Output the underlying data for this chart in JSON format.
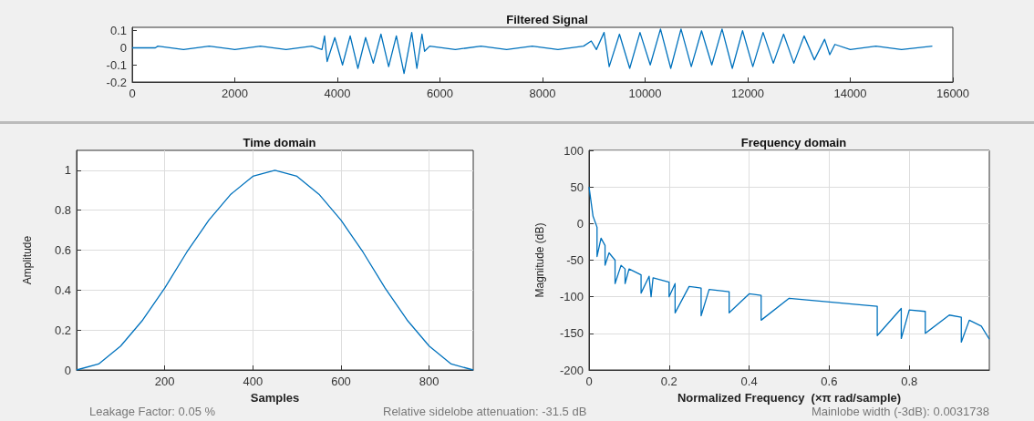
{
  "chart_data": [
    {
      "type": "line",
      "title": "Filtered Signal",
      "color": "#0072bd",
      "grid": false,
      "xlim": [
        0,
        16000
      ],
      "xticks": [
        0,
        2000,
        4000,
        6000,
        8000,
        10000,
        12000,
        14000,
        16000
      ],
      "ylim": [
        -0.2,
        0.12
      ],
      "yticks": [
        -0.2,
        -0.1,
        0,
        0.1
      ],
      "x": [
        0,
        450,
        500,
        1000,
        1500,
        2000,
        2500,
        3000,
        3500,
        3700,
        3750,
        3800,
        3950,
        4100,
        4250,
        4400,
        4550,
        4700,
        4850,
        5000,
        5150,
        5300,
        5450,
        5550,
        5650,
        5700,
        5800,
        6300,
        6800,
        7300,
        7800,
        8300,
        8800,
        8950,
        9050,
        9200,
        9300,
        9500,
        9700,
        9900,
        10100,
        10300,
        10500,
        10700,
        10900,
        11100,
        11300,
        11500,
        11700,
        11900,
        12100,
        12300,
        12500,
        12700,
        12900,
        13100,
        13300,
        13500,
        13600,
        13700,
        14000,
        14500,
        15000,
        15600
      ],
      "values": [
        0,
        0,
        0.01,
        -0.01,
        0.01,
        -0.01,
        0.01,
        -0.01,
        0.01,
        -0.01,
        0.07,
        -0.08,
        0.06,
        -0.1,
        0.07,
        -0.12,
        0.06,
        -0.09,
        0.08,
        -0.11,
        0.07,
        -0.15,
        0.09,
        -0.12,
        0.08,
        -0.02,
        0.01,
        -0.01,
        0.01,
        -0.01,
        0.01,
        -0.01,
        0.01,
        0.04,
        -0.01,
        0.09,
        -0.11,
        0.08,
        -0.12,
        0.09,
        -0.1,
        0.11,
        -0.12,
        0.11,
        -0.11,
        0.1,
        -0.1,
        0.11,
        -0.12,
        0.1,
        -0.11,
        0.09,
        -0.09,
        0.08,
        -0.09,
        0.07,
        -0.07,
        0.05,
        -0.04,
        0.02,
        -0.01,
        0.01,
        -0.01,
        0.01
      ]
    },
    {
      "type": "line",
      "title": "Time domain",
      "xlabel": "Samples",
      "ylabel": "Amplitude",
      "color": "#0072bd",
      "grid": true,
      "xlim": [
        0,
        900
      ],
      "xticks": [
        200,
        400,
        600,
        800
      ],
      "ylim": [
        0,
        1.1
      ],
      "yticks": [
        0,
        0.2,
        0.4,
        0.6,
        0.8,
        1
      ],
      "x": [
        0,
        50,
        100,
        150,
        200,
        250,
        300,
        350,
        400,
        450,
        500,
        550,
        600,
        650,
        700,
        750,
        800,
        850,
        900
      ],
      "values": [
        0,
        0.03,
        0.12,
        0.25,
        0.41,
        0.59,
        0.75,
        0.88,
        0.97,
        1,
        0.97,
        0.88,
        0.75,
        0.59,
        0.41,
        0.25,
        0.12,
        0.03,
        0
      ],
      "annotations": [
        "Leakage Factor: 0.05 %"
      ]
    },
    {
      "type": "line",
      "title": "Frequency domain",
      "xlabel": "Normalized Frequency  (×π rad/sample)",
      "ylabel": "Magnitude (dB)",
      "color": "#0072bd",
      "grid": true,
      "xlim": [
        0,
        1
      ],
      "xticks": [
        0,
        0.2,
        0.4,
        0.6,
        0.8
      ],
      "ylim": [
        -200,
        100
      ],
      "yticks": [
        -200,
        -150,
        -100,
        -50,
        0,
        50,
        100
      ],
      "x": [
        0,
        0.01,
        0.02,
        0.02,
        0.03,
        0.04,
        0.04,
        0.05,
        0.065,
        0.065,
        0.08,
        0.09,
        0.09,
        0.1,
        0.13,
        0.13,
        0.15,
        0.155,
        0.16,
        0.2,
        0.2,
        0.215,
        0.215,
        0.25,
        0.28,
        0.28,
        0.3,
        0.35,
        0.35,
        0.4,
        0.43,
        0.43,
        0.5,
        0.6,
        0.7,
        0.72,
        0.72,
        0.78,
        0.78,
        0.8,
        0.84,
        0.84,
        0.9,
        0.93,
        0.93,
        0.95,
        0.98,
        1
      ],
      "values": [
        50,
        10,
        -5,
        -45,
        -20,
        -30,
        -57,
        -40,
        -50,
        -82,
        -57,
        -62,
        -82,
        -62,
        -70,
        -95,
        -72,
        -100,
        -74,
        -80,
        -100,
        -82,
        -122,
        -86,
        -88,
        -126,
        -90,
        -93,
        -122,
        -96,
        -98,
        -132,
        -102,
        -107,
        -112,
        -113,
        -153,
        -116,
        -157,
        -118,
        -120,
        -150,
        -125,
        -128,
        -162,
        -132,
        -140,
        -158
      ],
      "annotations": [
        "Relative sidelobe attenuation: -31.5 dB",
        "Mainlobe width (-3dB): 0.0031738"
      ]
    }
  ]
}
